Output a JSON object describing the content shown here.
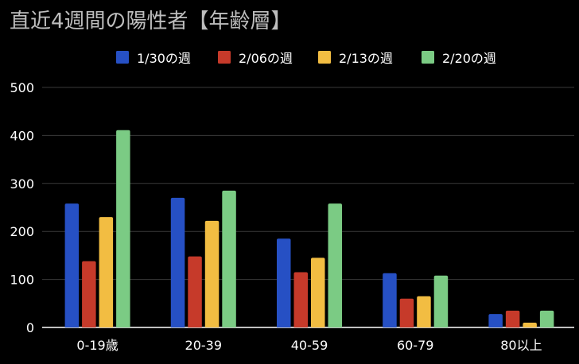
{
  "chart_data": {
    "type": "bar",
    "title": "直近4週間の陽性者【年齢層】",
    "xlabel": "",
    "ylabel": "",
    "categories": [
      "0-19歳",
      "20-39",
      "40-59",
      "60-79",
      "80以上"
    ],
    "series": [
      {
        "name": "1/30の週",
        "color": "#2650c4",
        "values": [
          258,
          270,
          185,
          113,
          28
        ]
      },
      {
        "name": "2/06の週",
        "color": "#c63a2a",
        "values": [
          138,
          148,
          115,
          60,
          35
        ]
      },
      {
        "name": "2/13の週",
        "color": "#f2bd42",
        "values": [
          230,
          222,
          145,
          65,
          10
        ]
      },
      {
        "name": "2/20の週",
        "color": "#7bcb84",
        "values": [
          411,
          285,
          258,
          108,
          35
        ]
      }
    ],
    "ylim": [
      0,
      500
    ],
    "yticks": [
      0,
      100,
      200,
      300,
      400,
      500
    ],
    "grid": true,
    "legend_position": "top"
  }
}
